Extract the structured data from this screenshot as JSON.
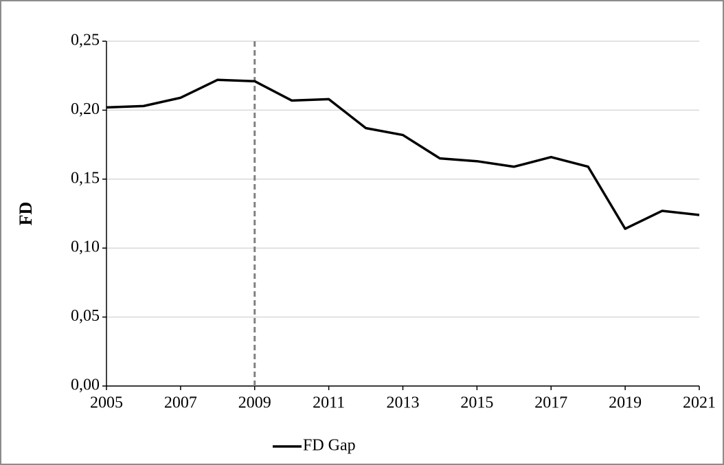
{
  "chart_data": {
    "type": "line",
    "y_label": "FD",
    "x": [
      2005,
      2006,
      2007,
      2008,
      2009,
      2010,
      2011,
      2012,
      2013,
      2014,
      2015,
      2016,
      2017,
      2018,
      2019,
      2020,
      2021
    ],
    "series": [
      {
        "name": "FD Gap",
        "color": "#000000",
        "values": [
          0.202,
          0.203,
          0.209,
          0.222,
          0.221,
          0.207,
          0.208,
          0.187,
          0.182,
          0.165,
          0.163,
          0.159,
          0.166,
          0.159,
          0.114,
          0.127,
          0.124
        ]
      }
    ],
    "xlim": [
      2005,
      2021
    ],
    "xticks": [
      2005,
      2007,
      2009,
      2011,
      2013,
      2015,
      2017,
      2019,
      2021
    ],
    "ylim": [
      0,
      0.25
    ],
    "yticks": [
      {
        "value": 0,
        "label": "0,00"
      },
      {
        "value": 0.05,
        "label": "0,05"
      },
      {
        "value": 0.1,
        "label": "0,10"
      },
      {
        "value": 0.15,
        "label": "0,15"
      },
      {
        "value": 0.2,
        "label": "0,20"
      },
      {
        "value": 0.25,
        "label": "0,25"
      }
    ],
    "vline": 2009,
    "grid": true,
    "legend": "bottom"
  }
}
